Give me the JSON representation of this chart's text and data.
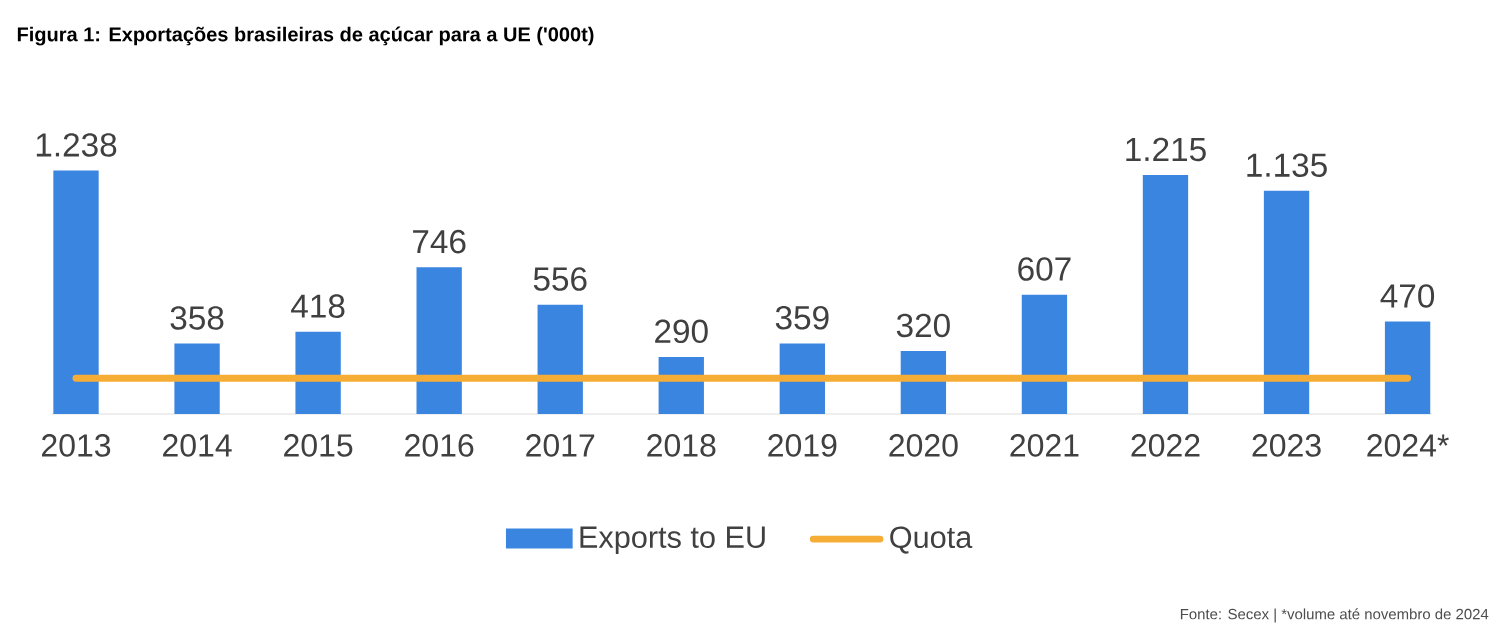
{
  "chart_data": {
    "type": "bar",
    "title": "Figura 1: Exportações brasileiras de açúcar para a UE ('000t)",
    "categories": [
      "2013",
      "2014",
      "2015",
      "2016",
      "2017",
      "2018",
      "2019",
      "2020",
      "2021",
      "2022",
      "2023",
      "2024*"
    ],
    "series": [
      {
        "name": "Exports to EU",
        "color": "#3a85e0",
        "values": [
          1238,
          358,
          418,
          746,
          556,
          290,
          359,
          320,
          607,
          1215,
          1135,
          470
        ],
        "value_labels": [
          "1.238",
          "358",
          "418",
          "746",
          "556",
          "290",
          "359",
          "320",
          "607",
          "1.215",
          "1.135",
          "470"
        ]
      },
      {
        "name": "Quota",
        "type": "line",
        "color": "#f5ad35",
        "values": [
          182,
          182,
          182,
          182,
          182,
          182,
          182,
          182,
          182,
          182,
          182,
          182
        ]
      }
    ],
    "legend": "bottom",
    "annotations": [
      "Fonte: Secex | *volume até novembro de 2024"
    ]
  }
}
